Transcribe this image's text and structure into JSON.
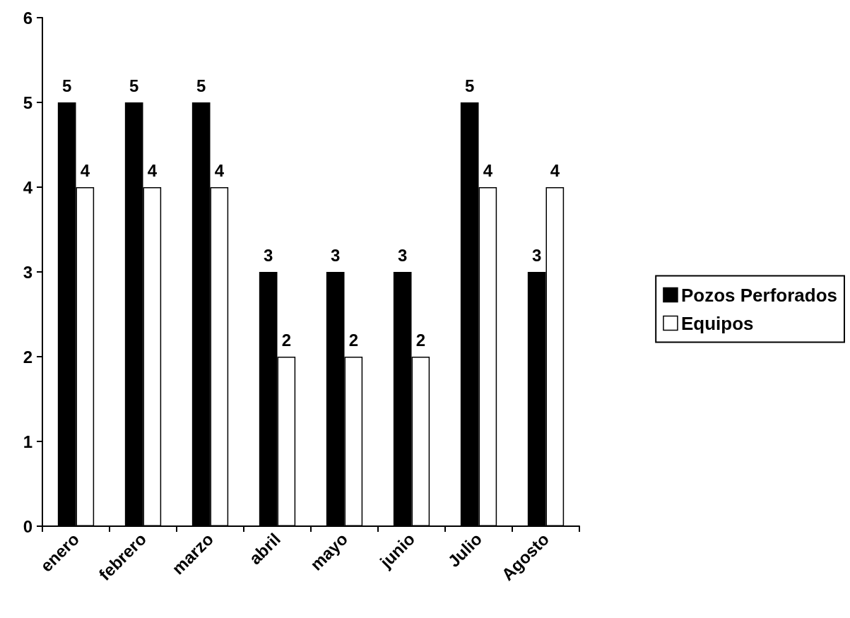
{
  "chart_data": {
    "type": "bar",
    "categories": [
      "enero",
      "febrero",
      "marzo",
      "abril",
      "mayo",
      "junio",
      "Julio",
      "Agosto"
    ],
    "series": [
      {
        "name": "Pozos Perforados",
        "color": "#000000",
        "values": [
          5,
          5,
          5,
          3,
          3,
          3,
          5,
          3
        ]
      },
      {
        "name": "Equipos",
        "color": "#ffffff",
        "values": [
          4,
          4,
          4,
          2,
          2,
          2,
          4,
          4
        ]
      }
    ],
    "ylim": [
      0,
      6
    ],
    "yticks": [
      0,
      1,
      2,
      3,
      4,
      5,
      6
    ],
    "grid": false,
    "legend": "right",
    "data_labels": true
  }
}
